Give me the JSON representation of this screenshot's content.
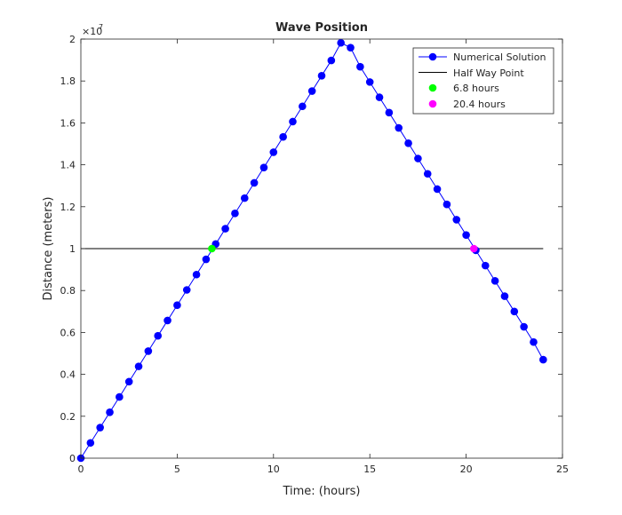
{
  "chart_data": {
    "type": "line",
    "title": "Wave Position",
    "xlabel": "Time: (hours)",
    "ylabel": "Distance (meters)",
    "y_exponent_label": "×10",
    "y_exponent_power": "7",
    "xlim": [
      0,
      25
    ],
    "ylim": [
      0,
      20000000
    ],
    "x_ticks": [
      0,
      5,
      10,
      15,
      20,
      25
    ],
    "y_ticks": [
      0,
      2000000,
      4000000,
      6000000,
      8000000,
      10000000,
      12000000,
      14000000,
      16000000,
      18000000,
      20000000
    ],
    "x_tick_labels": [
      "0",
      "5",
      "10",
      "15",
      "20",
      "25"
    ],
    "y_tick_labels": [
      "0",
      "0.2",
      "0.4",
      "0.6",
      "0.8",
      "1",
      "1.2",
      "1.4",
      "1.6",
      "1.8",
      "2"
    ],
    "grid": false,
    "legend_position": "top-right",
    "series": [
      {
        "name": "Numerical Solution",
        "kind": "line-marker",
        "color": "#0000ff",
        "x": [
          0,
          0.5,
          1,
          1.5,
          2,
          2.5,
          3,
          3.5,
          4,
          4.5,
          5,
          5.5,
          6,
          6.5,
          7,
          7.5,
          8,
          8.5,
          9,
          9.5,
          10,
          10.5,
          11,
          11.5,
          12,
          12.5,
          13,
          13.5,
          14,
          14.5,
          15,
          15.5,
          16,
          16.5,
          17,
          17.5,
          18,
          18.5,
          19,
          19.5,
          20,
          20.5,
          21,
          21.5,
          22,
          22.5,
          23,
          23.5,
          24
        ],
        "y": [
          0,
          730000,
          1460000,
          2190000,
          2920000,
          3650000,
          4380000,
          5110000,
          5840000,
          6570000,
          7300000,
          8030000,
          8760000,
          9490000,
          10220000,
          10950000,
          11680000,
          12410000,
          13140000,
          13870000,
          14600000,
          15330000,
          16060000,
          16790000,
          17520000,
          18250000,
          18980000,
          19820000,
          19590000,
          18680000,
          17950000,
          17220000,
          16490000,
          15760000,
          15030000,
          14300000,
          13570000,
          12840000,
          12110000,
          11380000,
          10650000,
          9920000,
          9190000,
          8460000,
          7730000,
          7000000,
          6270000,
          5540000,
          4700000
        ]
      },
      {
        "name": "Half Way Point",
        "kind": "line",
        "color": "#000000",
        "x": [
          0,
          24
        ],
        "y": [
          10000000,
          10000000
        ]
      },
      {
        "name": "6.8 hours",
        "kind": "marker",
        "color": "#00ff00",
        "x": [
          6.8
        ],
        "y": [
          10000000
        ]
      },
      {
        "name": "20.4 hours",
        "kind": "marker",
        "color": "#ff00ff",
        "x": [
          20.4
        ],
        "y": [
          10000000
        ]
      }
    ]
  }
}
